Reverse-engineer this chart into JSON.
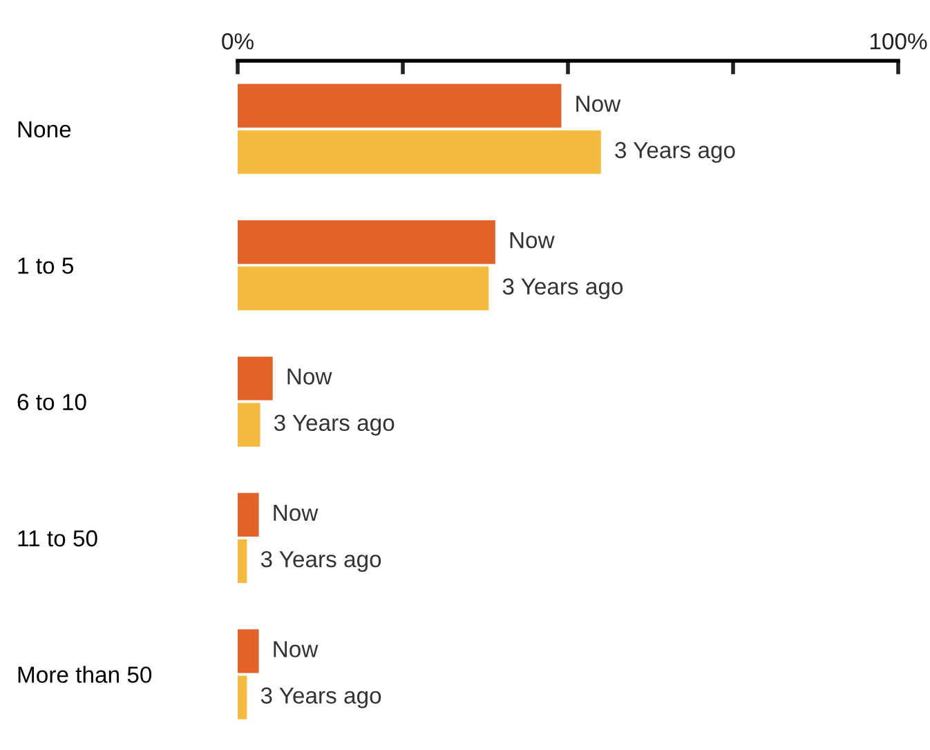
{
  "chart_data": {
    "type": "bar",
    "orientation": "horizontal",
    "categories": [
      "None",
      "1 to 5",
      "6 to 10",
      "11 to 50",
      "More than 50"
    ],
    "series": [
      {
        "name": "Now",
        "color": "#e2622a",
        "values": [
          49,
          39,
          5.3,
          3.2,
          3.2
        ]
      },
      {
        "name": "3 Years ago",
        "color": "#f5bb3f",
        "values": [
          55,
          38,
          3.4,
          1.4,
          1.4
        ]
      }
    ],
    "xlim": [
      0,
      100
    ],
    "xticks": [
      {
        "value": 0,
        "label": "0%"
      },
      {
        "value": 25,
        "label": null
      },
      {
        "value": 50,
        "label": null
      },
      {
        "value": 75,
        "label": null
      },
      {
        "value": 100,
        "label": "100%"
      }
    ],
    "grid": false,
    "legend": false
  }
}
